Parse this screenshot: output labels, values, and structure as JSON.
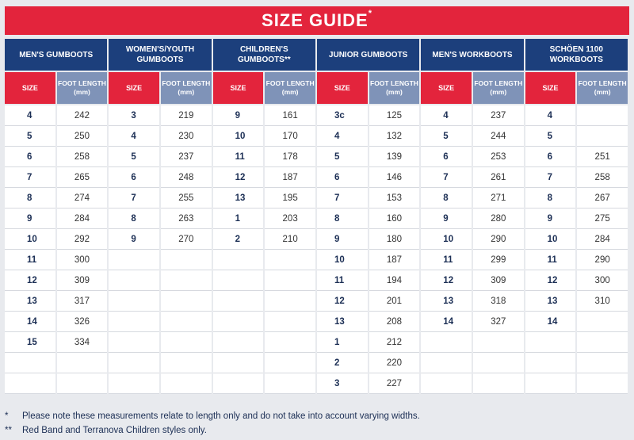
{
  "title": "SIZE GUIDE",
  "title_mark": "*",
  "size_label": "SIZE",
  "foot_label_1": "FOOT LENGTH",
  "foot_label_2": "(mm)",
  "groups": [
    {
      "line1": "MEN'S GUMBOOTS",
      "line2": ""
    },
    {
      "line1": "WOMEN'S/YOUTH",
      "line2": "GUMBOOTS"
    },
    {
      "line1": "CHILDREN'S GUMBOOTS**",
      "line2": ""
    },
    {
      "line1": "JUNIOR GUMBOOTS",
      "line2": ""
    },
    {
      "line1": "MEN'S WORKBOOTS",
      "line2": ""
    },
    {
      "line1": "SCHÖEN 1100",
      "line2": "WORKBOOTS"
    }
  ],
  "rows": [
    [
      "4",
      "242",
      "3",
      "219",
      "9",
      "161",
      "3c",
      "125",
      "4",
      "237",
      "4",
      ""
    ],
    [
      "5",
      "250",
      "4",
      "230",
      "10",
      "170",
      "4",
      "132",
      "5",
      "244",
      "5",
      ""
    ],
    [
      "6",
      "258",
      "5",
      "237",
      "11",
      "178",
      "5",
      "139",
      "6",
      "253",
      "6",
      "251"
    ],
    [
      "7",
      "265",
      "6",
      "248",
      "12",
      "187",
      "6",
      "146",
      "7",
      "261",
      "7",
      "258"
    ],
    [
      "8",
      "274",
      "7",
      "255",
      "13",
      "195",
      "7",
      "153",
      "8",
      "271",
      "8",
      "267"
    ],
    [
      "9",
      "284",
      "8",
      "263",
      "1",
      "203",
      "8",
      "160",
      "9",
      "280",
      "9",
      "275"
    ],
    [
      "10",
      "292",
      "9",
      "270",
      "2",
      "210",
      "9",
      "180",
      "10",
      "290",
      "10",
      "284"
    ],
    [
      "11",
      "300",
      "",
      "",
      "",
      "",
      "10",
      "187",
      "11",
      "299",
      "11",
      "290"
    ],
    [
      "12",
      "309",
      "",
      "",
      "",
      "",
      "11",
      "194",
      "12",
      "309",
      "12",
      "300"
    ],
    [
      "13",
      "317",
      "",
      "",
      "",
      "",
      "12",
      "201",
      "13",
      "318",
      "13",
      "310"
    ],
    [
      "14",
      "326",
      "",
      "",
      "",
      "",
      "13",
      "208",
      "14",
      "327",
      "14",
      ""
    ],
    [
      "15",
      "334",
      "",
      "",
      "",
      "",
      "1",
      "212",
      "",
      "",
      "",
      ""
    ],
    [
      "",
      "",
      "",
      "",
      "",
      "",
      "2",
      "220",
      "",
      "",
      "",
      ""
    ],
    [
      "",
      "",
      "",
      "",
      "",
      "",
      "3",
      "227",
      "",
      "",
      "",
      ""
    ]
  ],
  "footnotes": [
    {
      "mark": "*",
      "text": "Please note these measurements relate to length only and do not take into account varying widths."
    },
    {
      "mark": "**",
      "text": "Red Band and Terranova Children styles only."
    }
  ]
}
